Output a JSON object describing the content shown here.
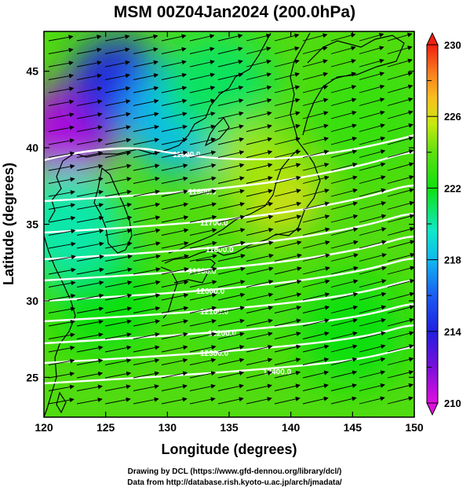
{
  "chart_data": {
    "type": "heatmap",
    "title": "MSM 00Z04Jan2024 (200.0hPa)",
    "xlabel": "Longitude (degrees)",
    "ylabel": "Latitude (degrees)",
    "xlim": [
      120,
      150
    ],
    "ylim": [
      22.4,
      47.6
    ],
    "xticks": [
      120,
      125,
      130,
      135,
      140,
      145,
      150
    ],
    "yticks": [
      25,
      30,
      35,
      40,
      45
    ],
    "colorbar": {
      "range": [
        210,
        230
      ],
      "ticks": [
        210,
        214,
        218,
        222,
        226,
        230
      ],
      "colors": [
        "#e010e0",
        "#7a10d8",
        "#2020e0",
        "#1c5cf0",
        "#10b8f0",
        "#10e8c8",
        "#10e010",
        "#60e010",
        "#c8e810",
        "#f8c020",
        "#f88020",
        "#f02010"
      ]
    },
    "field_samples": [
      {
        "lon": 122,
        "lat": 41,
        "value": 211
      },
      {
        "lon": 126,
        "lat": 44,
        "value": 214
      },
      {
        "lon": 131,
        "lat": 42,
        "value": 218
      },
      {
        "lon": 134,
        "lat": 44,
        "value": 221
      },
      {
        "lon": 139,
        "lat": 37,
        "value": 226
      },
      {
        "lon": 137,
        "lat": 39,
        "value": 225
      },
      {
        "lon": 135,
        "lat": 30,
        "value": 223
      },
      {
        "lon": 145,
        "lat": 28,
        "value": 222
      },
      {
        "lon": 125,
        "lat": 30,
        "value": 222
      },
      {
        "lon": 146,
        "lat": 42,
        "value": 223
      },
      {
        "lon": 122,
        "lat": 35,
        "value": 220
      }
    ],
    "contours": {
      "levels": [
        11500,
        11600,
        11700,
        11800,
        11900,
        12000,
        12100,
        12200,
        12300,
        12400
      ],
      "labels": [
        "11500.0",
        "11600.0",
        "11700.0",
        "11800.0",
        "11900.0",
        "12000.0",
        "12100.0",
        "12200.0",
        "12300.0",
        "12400.0"
      ]
    },
    "wind": {
      "direction": "westerly (eastward)",
      "style": "black arrows"
    }
  },
  "footer": {
    "line1": "Drawing by DCL (https://www.gfd-dennou.org/library/dcl/)",
    "line2": "Data from http://database.rish.kyoto-u.ac.jp/arch/jmadata/"
  }
}
